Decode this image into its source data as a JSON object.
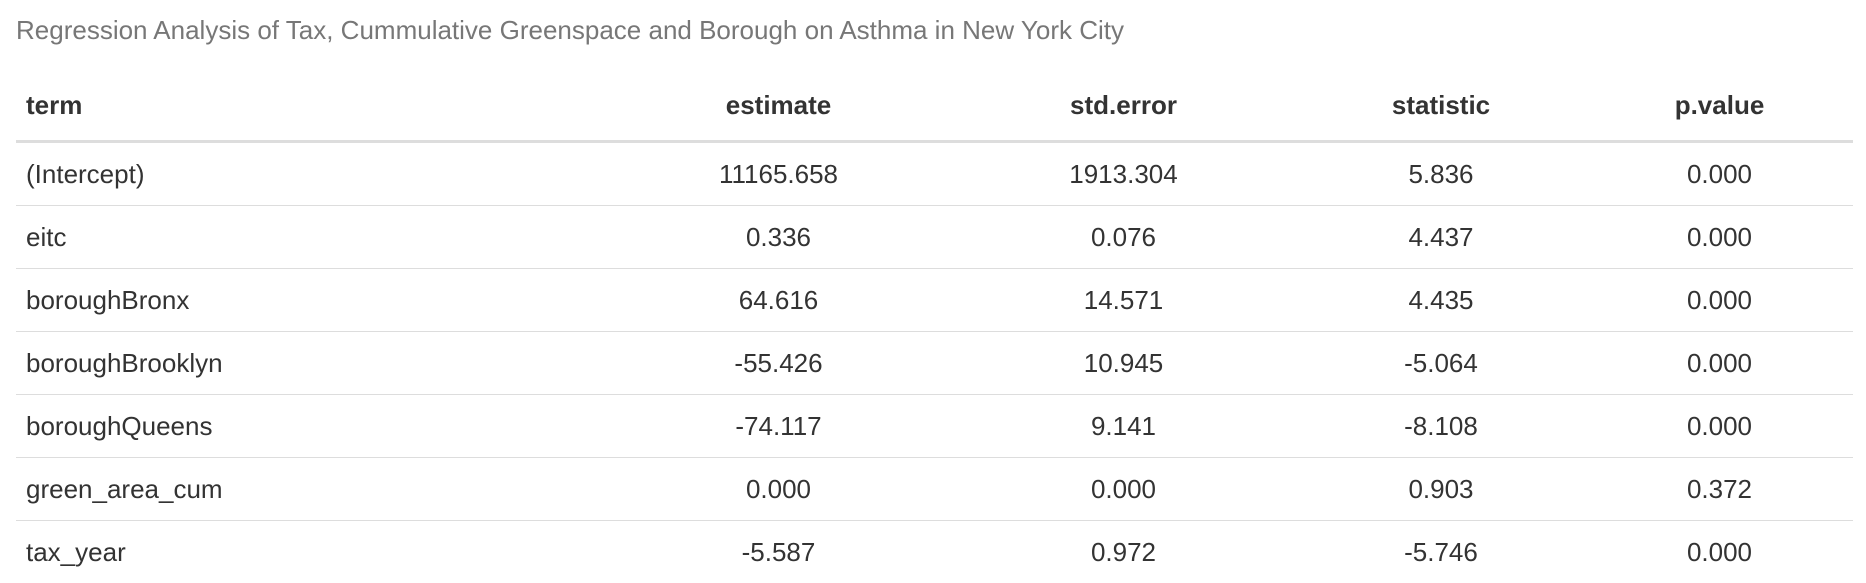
{
  "caption": "Regression Analysis of Tax, Cummulative Greenspace and Borough on Asthma in New York City",
  "columns": [
    "term",
    "estimate",
    "std.error",
    "statistic",
    "p.value"
  ],
  "rows": [
    {
      "term": "(Intercept)",
      "estimate": "11165.658",
      "std_error": "1913.304",
      "statistic": "5.836",
      "p_value": "0.000"
    },
    {
      "term": "eitc",
      "estimate": "0.336",
      "std_error": "0.076",
      "statistic": "4.437",
      "p_value": "0.000"
    },
    {
      "term": "boroughBronx",
      "estimate": "64.616",
      "std_error": "14.571",
      "statistic": "4.435",
      "p_value": "0.000"
    },
    {
      "term": "boroughBrooklyn",
      "estimate": "-55.426",
      "std_error": "10.945",
      "statistic": "-5.064",
      "p_value": "0.000"
    },
    {
      "term": "boroughQueens",
      "estimate": "-74.117",
      "std_error": "9.141",
      "statistic": "-8.108",
      "p_value": "0.000"
    },
    {
      "term": "green_area_cum",
      "estimate": "0.000",
      "std_error": "0.000",
      "statistic": "0.903",
      "p_value": "0.372"
    },
    {
      "term": "tax_year",
      "estimate": "-5.587",
      "std_error": "0.972",
      "statistic": "-5.746",
      "p_value": "0.000"
    }
  ],
  "colors": {
    "caption": "#777777",
    "text": "#333333",
    "rule": "#dddddd"
  }
}
